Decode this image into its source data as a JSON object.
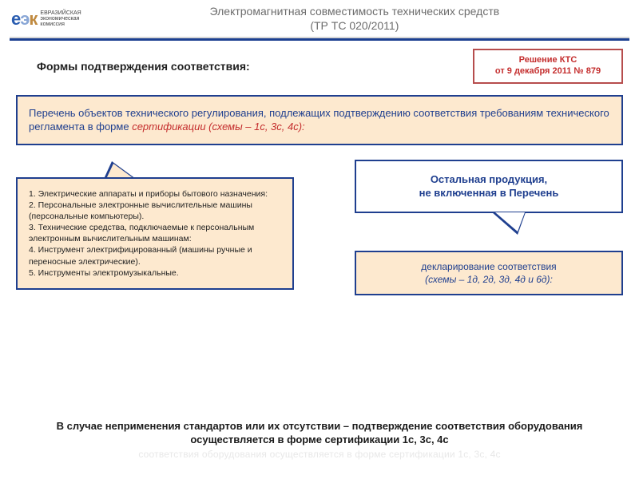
{
  "colors": {
    "brand_blue": "#1f3f8f",
    "box_fill": "#fde9cf",
    "warn_red": "#c42d2d",
    "warn_border": "#b64d4d",
    "title_grey": "#6c6c6c",
    "divider_bar": "#1b3f91",
    "logo_e": "#2a5db0",
    "logo_ae": "#8aa7d6",
    "logo_k": "#c08a40",
    "ghost_text": "#e8e8e8",
    "body_bg": "#ffffff"
  },
  "logo": {
    "mark_e": "е",
    "mark_ae": "э",
    "mark_k": "к",
    "sub_line1": "ЕВРАЗИЙСКАЯ",
    "sub_line2": "экономическая",
    "sub_line3": "комиссия"
  },
  "header": {
    "title_line1": "Электромагнитная совместимость технических средств",
    "title_line2": "(ТР ТС 020/2011)"
  },
  "subheader": {
    "text": "Формы  подтверждения соответствия:",
    "decision_line1": "Решение КТС",
    "decision_line2": "от 9 декабря 2011 № 879"
  },
  "cert": {
    "lead": "Перечень объектов технического регулирования, подлежащих подтверждению соответствия требованиям технического регламента в форме ",
    "emph": "сертификации (схемы – 1с, 3с, 4с):"
  },
  "list": {
    "i1": "1. Электрические аппараты и приборы бытового назначения:",
    "i2": "2. Персональные электронные вычислительные машины (персональные компьютеры).",
    "i3": "3. Технические средства, подключаемые к персональным электронным вычислительным машинам:",
    "i4": "4. Инструмент электрифицированный (машины ручные и переносные электрические).",
    "i5": "5. Инструменты электромузыкальные."
  },
  "other": {
    "line1": "Остальная продукция,",
    "line2": "не включенная в Перечень"
  },
  "decl": {
    "line1": "декларирование соответствия",
    "line2": "(схемы – 1д, 2д, 3д, 4д и  6д):"
  },
  "footer": {
    "main": "В случае неприменения стандартов или их отсутствии – подтверждение соответствия оборудования осуществляется в форме сертификации 1с, 3с, 4с",
    "ghost": "соответствия оборудования осуществляется в форме сертификации 1с, 3с, 4с"
  }
}
